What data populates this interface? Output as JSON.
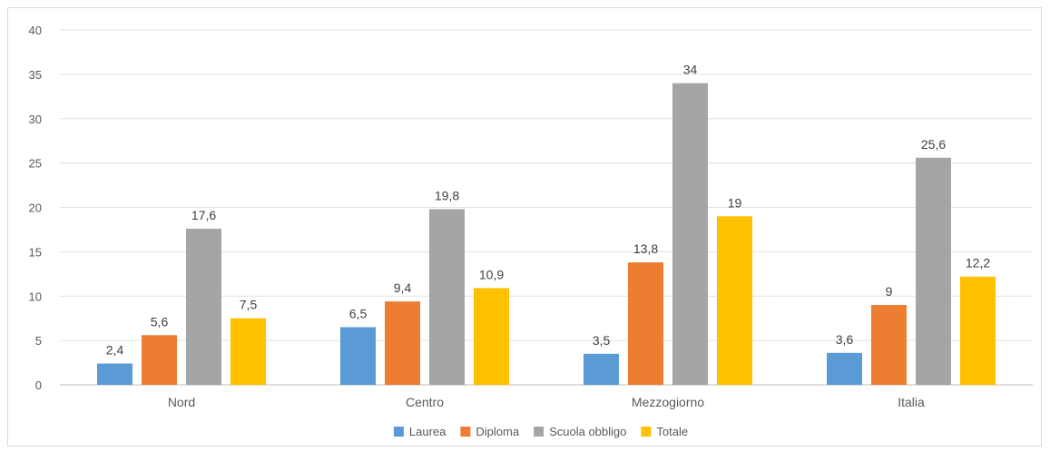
{
  "chart_data": {
    "type": "bar",
    "categories": [
      "Nord",
      "Centro",
      "Mezzogiorno",
      "Italia"
    ],
    "series": [
      {
        "name": "Laurea",
        "color": "#5b9bd5",
        "values": [
          2.4,
          6.5,
          3.5,
          3.6
        ],
        "labels": [
          "2,4",
          "6,5",
          "3,5",
          "3,6"
        ]
      },
      {
        "name": "Diploma",
        "color": "#ed7d31",
        "values": [
          5.6,
          9.4,
          13.8,
          9
        ],
        "labels": [
          "5,6",
          "9,4",
          "13,8",
          "9"
        ]
      },
      {
        "name": "Scuola obbligo",
        "color": "#a5a5a5",
        "values": [
          17.6,
          19.8,
          34,
          25.6
        ],
        "labels": [
          "17,6",
          "19,8",
          "34",
          "25,6"
        ]
      },
      {
        "name": "Totale",
        "color": "#ffc000",
        "values": [
          7.5,
          10.9,
          19,
          12.2
        ],
        "labels": [
          "7,5",
          "10,9",
          "19",
          "12,2"
        ]
      }
    ],
    "ylim": [
      0,
      40
    ],
    "yticks": [
      0,
      5,
      10,
      15,
      20,
      25,
      30,
      35,
      40
    ],
    "grid": true,
    "legend": "bottom",
    "title": "",
    "xlabel": "",
    "ylabel": ""
  }
}
